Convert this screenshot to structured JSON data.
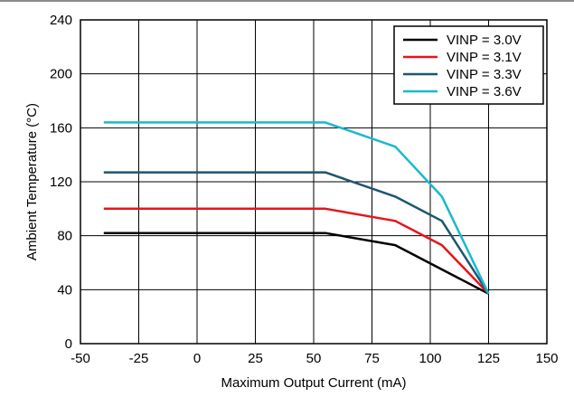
{
  "chart_data": {
    "type": "line",
    "xlabel": "Maximum Output Current (mA)",
    "ylabel": "Ambient Temperature (°C)",
    "xlim": [
      -50,
      150
    ],
    "ylim": [
      0,
      240
    ],
    "xticks": [
      -50,
      -25,
      0,
      25,
      50,
      75,
      100,
      125,
      150
    ],
    "yticks": [
      0,
      40,
      80,
      120,
      160,
      200,
      240
    ],
    "grid": true,
    "legend_position": "top-right",
    "series": [
      {
        "name": "VINP = 3.0V",
        "color": "#000000",
        "x": [
          -40,
          55,
          85,
          125
        ],
        "y": [
          82,
          82,
          73,
          37
        ]
      },
      {
        "name": "VINP = 3.1V",
        "color": "#e8141b",
        "x": [
          -40,
          55,
          85,
          105,
          125
        ],
        "y": [
          100,
          100,
          91,
          73,
          37
        ]
      },
      {
        "name": "VINP = 3.3V",
        "color": "#1d566f",
        "x": [
          -40,
          55,
          85,
          105,
          125
        ],
        "y": [
          127,
          127,
          109,
          91,
          37
        ]
      },
      {
        "name": "VINP = 3.6V",
        "color": "#19b9ce",
        "x": [
          -40,
          55,
          85,
          105,
          125
        ],
        "y": [
          164,
          164,
          146,
          109,
          37
        ]
      }
    ]
  }
}
